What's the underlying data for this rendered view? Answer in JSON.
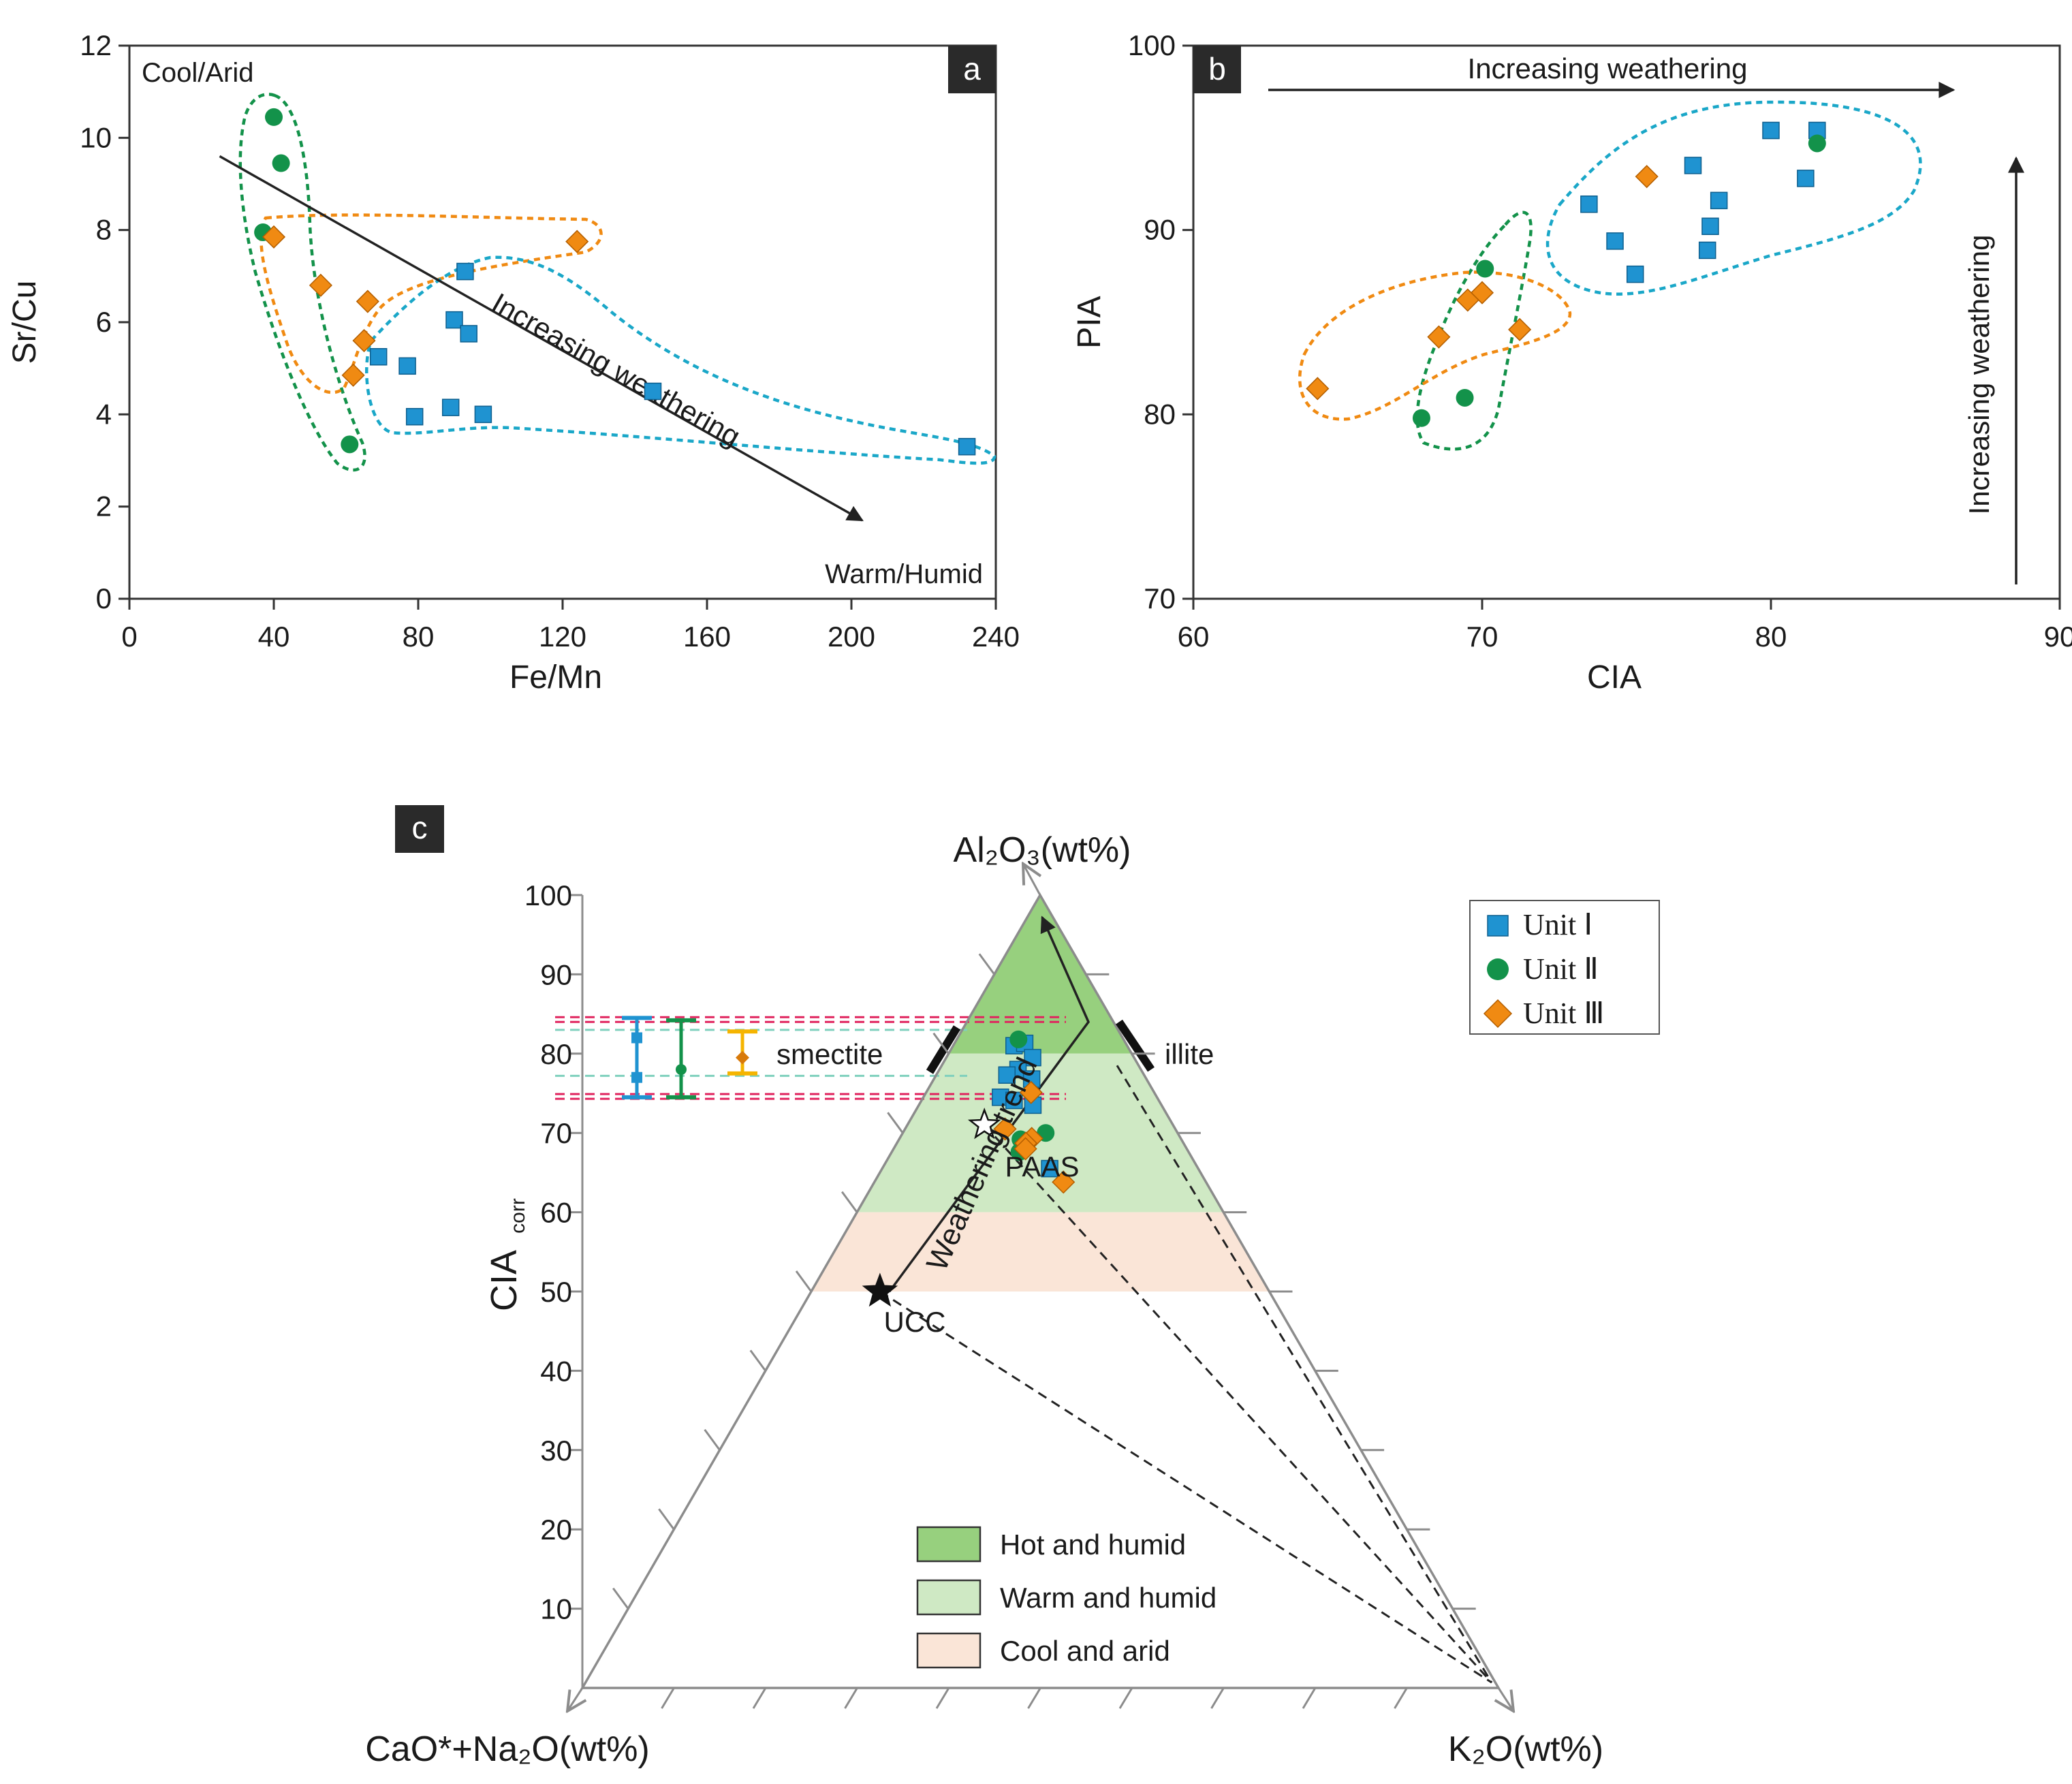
{
  "colors": {
    "unit1": "#1f93d1",
    "unit2": "#13924a",
    "unit3": "#f08a12",
    "zone_hot": "#97d07e",
    "zone_warm": "#cfe9c4",
    "zone_cool": "#fae5d7",
    "smectite_lines": "#e0245e",
    "illite_lines": "#7fd0bd",
    "range_orange": "#f5b400"
  },
  "chart_data": [
    {
      "panel": "a",
      "type": "scatter",
      "xlabel": "Fe/Mn",
      "ylabel": "Sr/Cu",
      "xlim": [
        0,
        240
      ],
      "ylim": [
        0,
        12
      ],
      "xticks": [
        0,
        40,
        80,
        120,
        160,
        200,
        240
      ],
      "yticks": [
        0,
        2,
        4,
        6,
        8,
        10,
        12
      ],
      "corner_label_top": "Cool/Arid",
      "corner_label_bottom": "Warm/Humid",
      "trend_label": "Increasing weathering",
      "trend_arrow": {
        "from": [
          25,
          9.6
        ],
        "to": [
          203,
          1.7
        ]
      },
      "series": [
        {
          "name": "Unit I",
          "marker": "square",
          "points": [
            [
              93,
              7.1
            ],
            [
              90,
              6.05
            ],
            [
              94,
              5.75
            ],
            [
              69,
              5.25
            ],
            [
              77,
              5.05
            ],
            [
              89,
              4.15
            ],
            [
              79,
              3.95
            ],
            [
              98,
              4.0
            ],
            [
              145,
              4.5
            ],
            [
              232,
              3.3
            ]
          ]
        },
        {
          "name": "Unit II",
          "marker": "circle",
          "points": [
            [
              40,
              10.45
            ],
            [
              42,
              9.45
            ],
            [
              37,
              7.95
            ],
            [
              61,
              3.35
            ]
          ]
        },
        {
          "name": "Unit III",
          "marker": "diamond",
          "points": [
            [
              124,
              7.75
            ],
            [
              40,
              7.85
            ],
            [
              53,
              6.8
            ],
            [
              66,
              6.45
            ],
            [
              65,
              5.6
            ],
            [
              62,
              4.85
            ]
          ]
        }
      ]
    },
    {
      "panel": "b",
      "type": "scatter",
      "xlabel": "CIA",
      "ylabel": "PIA",
      "xlim": [
        60,
        90
      ],
      "ylim": [
        70,
        100
      ],
      "xticks": [
        60,
        70,
        80,
        90
      ],
      "yticks": [
        70,
        80,
        90,
        100
      ],
      "top_arrow_label": "Increasing weathering",
      "side_arrow_label": "Increasing weathering",
      "series": [
        {
          "name": "Unit I",
          "marker": "square",
          "points": [
            [
              80,
              95.4
            ],
            [
              81.6,
              95.4
            ],
            [
              77.3,
              93.5
            ],
            [
              81.2,
              92.8
            ],
            [
              73.7,
              91.4
            ],
            [
              78.2,
              91.6
            ],
            [
              77.9,
              90.2
            ],
            [
              74.6,
              89.4
            ],
            [
              77.8,
              88.9
            ],
            [
              75.3,
              87.6
            ]
          ]
        },
        {
          "name": "Unit II",
          "marker": "circle",
          "points": [
            [
              81.6,
              94.7
            ],
            [
              70.1,
              87.9
            ],
            [
              69.4,
              80.9
            ],
            [
              67.9,
              79.8
            ]
          ]
        },
        {
          "name": "Unit III",
          "marker": "diamond",
          "points": [
            [
              75.7,
              92.9
            ],
            [
              70,
              86.6
            ],
            [
              69.5,
              86.2
            ],
            [
              71.3,
              84.6
            ],
            [
              68.5,
              84.2
            ],
            [
              64.3,
              81.4
            ]
          ]
        }
      ]
    },
    {
      "panel": "c",
      "type": "ternary",
      "apex_label": "Al₂O₃(wt%)",
      "left_label": "CaO*+Na₂O(wt%)",
      "right_label": "K₂O(wt%)",
      "ylabel": "CIAcorr",
      "cia_ticks": [
        10,
        20,
        30,
        40,
        50,
        60,
        70,
        80,
        90,
        100
      ],
      "zones": [
        {
          "name": "Hot and humid",
          "cia_range": [
            80,
            100
          ]
        },
        {
          "name": "Warm and humid",
          "cia_range": [
            60,
            80
          ]
        },
        {
          "name": "Cool and arid",
          "cia_range": [
            50,
            60
          ]
        }
      ],
      "references": [
        {
          "name": "UCC",
          "cia": 50,
          "k_frac": 0.15
        },
        {
          "name": "PAAS",
          "cia": 71,
          "k_frac": 0.29
        }
      ],
      "minerals": [
        "smectite",
        "illite"
      ],
      "trend_label": "Weathering trend",
      "unit_cia_ranges": [
        {
          "name": "Unit I",
          "min": 74.5,
          "max": 84.5,
          "markers": [
            82,
            77
          ]
        },
        {
          "name": "Unit II",
          "min": 74.5,
          "max": 84.2,
          "markers": [
            78
          ]
        },
        {
          "name": "Unit III",
          "min": 77.5,
          "max": 82.8,
          "markers": [
            79.5
          ]
        }
      ],
      "series": [
        {
          "name": "Unit I",
          "marker": "square",
          "points": [
            [
              81,
              0.35
            ],
            [
              81.3,
              0.41
            ],
            [
              79.5,
              0.46
            ],
            [
              78,
              0.39
            ],
            [
              77.3,
              0.34
            ],
            [
              76.8,
              0.46
            ],
            [
              74.5,
              0.33
            ],
            [
              74.1,
              0.39
            ],
            [
              73.5,
              0.47
            ],
            [
              65.5,
              0.53
            ]
          ]
        },
        {
          "name": "Unit II",
          "marker": "circle",
          "points": [
            [
              81.8,
              0.37
            ],
            [
              70,
              0.52
            ],
            [
              69.2,
              0.43
            ],
            [
              67.6,
              0.43
            ]
          ]
        },
        {
          "name": "Unit III",
          "marker": "diamond",
          "points": [
            [
              75.1,
              0.46
            ],
            [
              70.5,
              0.37
            ],
            [
              69.3,
              0.47
            ],
            [
              68.7,
              0.45
            ],
            [
              68,
              0.45
            ],
            [
              63.8,
              0.57
            ]
          ]
        }
      ]
    }
  ],
  "panel_labels": {
    "a": "a",
    "b": "b",
    "c": "c"
  },
  "ternary_text": {
    "smectite": "smectite",
    "illite": "illite",
    "weathering_trend": "Weathering trend",
    "ucc": "UCC",
    "paas": "PAAS",
    "ylabel_main": "CIA",
    "ylabel_sub": "corr"
  },
  "legend_units": [
    {
      "label": "Unit Ⅰ",
      "marker": "square"
    },
    {
      "label": "Unit Ⅱ",
      "marker": "circle"
    },
    {
      "label": "Unit Ⅲ",
      "marker": "diamond"
    }
  ],
  "legend_zones": [
    {
      "label": "Hot and humid",
      "zone": "hot"
    },
    {
      "label": "Warm and humid",
      "zone": "warm"
    },
    {
      "label": "Cool and arid",
      "zone": "cool"
    }
  ]
}
